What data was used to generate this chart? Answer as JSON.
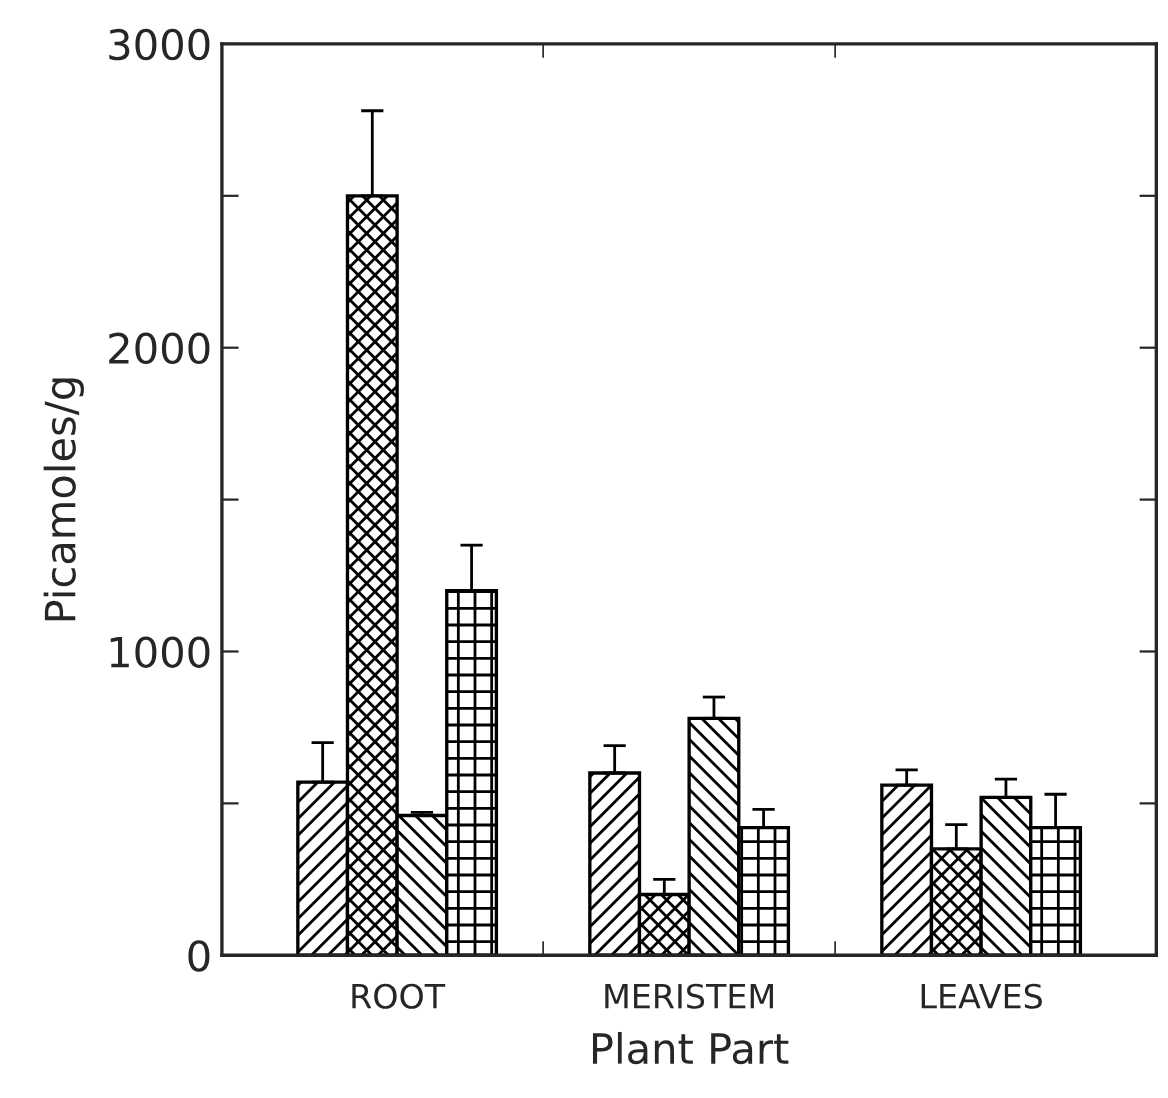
{
  "chart_data": {
    "type": "bar",
    "xlabel": "Plant Part",
    "ylabel": "Picamoles/g",
    "categories": [
      "ROOT",
      "MERISTEM",
      "LEAVES"
    ],
    "series": [
      {
        "color": "#000000",
        "values": [
          570,
          600,
          560
        ],
        "errors": [
          [
            570,
            700
          ],
          [
            600,
            690
          ],
          [
            560,
            610
          ]
        ]
      },
      {
        "color": "#000000",
        "values": [
          2500,
          200,
          350
        ],
        "errors": [
          [
            2500,
            2780
          ],
          [
            200,
            250
          ],
          [
            350,
            430
          ]
        ]
      },
      {
        "color": "#000000",
        "values": [
          460,
          780,
          520
        ],
        "errors": [
          [
            460,
            470
          ],
          [
            780,
            850
          ],
          [
            520,
            580
          ]
        ]
      },
      {
        "color": "#000000",
        "values": [
          1200,
          420,
          420
        ],
        "errors": [
          [
            1200,
            1350
          ],
          [
            420,
            480
          ],
          [
            420,
            530
          ]
        ]
      }
    ],
    "ylim": [
      0,
      3000
    ],
    "yticks": [
      0,
      {
        "value": 500,
        "label": null
      },
      1000,
      {
        "value": 1500,
        "label": null
      },
      2000,
      {
        "value": 2500,
        "label": null
      },
      3000
    ],
    "grid": false
  }
}
